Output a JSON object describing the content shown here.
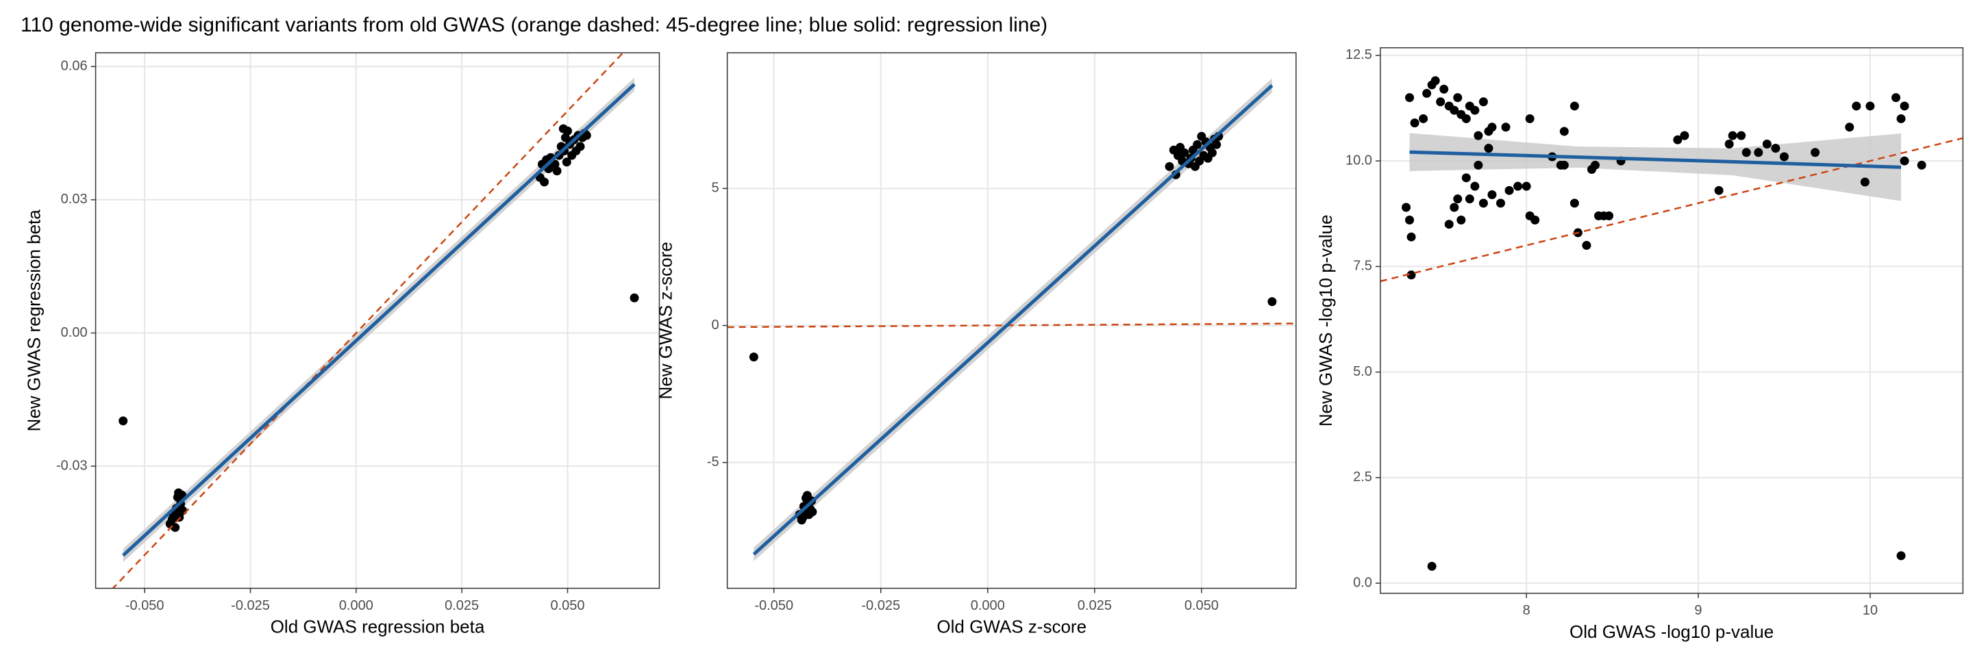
{
  "title": "110 genome-wide significant variants from old GWAS (orange dashed: 45-degree line; blue solid: regression line)",
  "chart_data": [
    {
      "type": "scatter",
      "xlabel": "Old GWAS regression beta",
      "ylabel": "New GWAS regression beta",
      "color": "#000000",
      "grid": true,
      "xlim": [
        -0.0616,
        0.0717
      ],
      "ylim": [
        -0.0575,
        0.0631
      ],
      "xticks": [
        {
          "value": -0.05,
          "label": "-0.050"
        },
        {
          "value": -0.025,
          "label": "-0.025"
        },
        {
          "value": 0,
          "label": "0.000"
        },
        {
          "value": 0.025,
          "label": "0.025"
        },
        {
          "value": 0.05,
          "label": "0.050"
        }
      ],
      "yticks": [
        {
          "value": -0.03,
          "label": "-0.03"
        },
        {
          "value": 0,
          "label": "0.00"
        },
        {
          "value": 0.03,
          "label": "0.03"
        },
        {
          "value": 0.06,
          "label": "0.06"
        }
      ],
      "x": [
        -0.044,
        -0.0435,
        -0.043,
        -0.0428,
        -0.0425,
        -0.0422,
        -0.042,
        -0.0418,
        -0.0415,
        -0.0412,
        -0.041,
        -0.0432,
        0.0435,
        0.044,
        0.0445,
        0.045,
        0.0455,
        0.046,
        0.047,
        0.0475,
        0.048,
        0.0485,
        0.049,
        0.0492,
        0.0495,
        0.0498,
        0.05,
        0.0505,
        0.051,
        0.0515,
        0.052,
        0.0525,
        0.053,
        0.0535,
        0.054,
        0.0545,
        -0.0551,
        0.0658
      ],
      "y": [
        -0.043,
        -0.042,
        -0.0405,
        -0.0438,
        -0.0395,
        -0.037,
        -0.036,
        -0.0415,
        -0.0385,
        -0.0365,
        -0.04,
        -0.0412,
        0.035,
        0.038,
        0.034,
        0.039,
        0.037,
        0.0395,
        0.038,
        0.0365,
        0.04,
        0.042,
        0.046,
        0.041,
        0.044,
        0.0385,
        0.0455,
        0.0425,
        0.04,
        0.0435,
        0.041,
        0.0445,
        0.042,
        0.044,
        0.045,
        0.0445,
        -0.0198,
        0.0079
      ],
      "lines": [
        {
          "x": [
            -0.0616,
            0.0717
          ],
          "y": [
            -0.0616,
            0.0717
          ],
          "color": "#cc4411",
          "dashed": true
        }
      ],
      "fit": {
        "x": [
          -0.0551,
          0.0658
        ],
        "y": [
          -0.0501,
          0.056
        ],
        "lower": [
          -0.0516,
          0.0545
        ],
        "upper": [
          -0.0486,
          0.0575
        ],
        "color": "#1f5fa0",
        "band_color": "#c8c8c8"
      }
    },
    {
      "type": "scatter",
      "xlabel": "Old GWAS z-score",
      "ylabel": "New GWAS z-score",
      "color": "#000000",
      "grid": true,
      "xlim": [
        -0.0609,
        0.0721
      ],
      "ylim": [
        -9.59,
        9.95
      ],
      "xticks": [
        {
          "value": -0.05,
          "label": "-0.050"
        },
        {
          "value": -0.025,
          "label": "-0.025"
        },
        {
          "value": 0,
          "label": "0.000"
        },
        {
          "value": 0.025,
          "label": "0.025"
        },
        {
          "value": 0.05,
          "label": "0.050"
        }
      ],
      "yticks": [
        -5,
        0,
        5
      ],
      "x": [
        -0.044,
        -0.0435,
        -0.043,
        -0.0428,
        -0.0425,
        -0.0422,
        -0.042,
        -0.0418,
        -0.0415,
        -0.0412,
        -0.041,
        -0.0432,
        0.0425,
        0.0435,
        0.044,
        0.0445,
        0.045,
        0.0455,
        0.046,
        0.047,
        0.0475,
        0.048,
        0.0485,
        0.049,
        0.0495,
        0.05,
        0.0505,
        0.051,
        0.0515,
        0.052,
        0.0525,
        0.053,
        0.0535,
        0.054,
        -0.0547,
        0.0665
      ],
      "y": [
        -6.9,
        -7.1,
        -6.6,
        -6.8,
        -6.3,
        -6.2,
        -6.5,
        -6.9,
        -6.7,
        -6.4,
        -6.8,
        -7.0,
        5.8,
        6.4,
        5.5,
        6.2,
        6.5,
        6.0,
        6.3,
        5.9,
        6.1,
        6.4,
        5.8,
        6.6,
        6.0,
        6.9,
        6.2,
        6.7,
        6.1,
        6.5,
        6.3,
        6.8,
        6.6,
        6.9,
        -1.15,
        0.87
      ],
      "lines": [
        {
          "x": [
            -0.0609,
            0.0721
          ],
          "y": [
            -0.0609,
            0.0721
          ],
          "color": "#cc4411",
          "dashed": true
        }
      ],
      "fit": {
        "x": [
          -0.0547,
          0.0665
        ],
        "y": [
          -8.35,
          8.76
        ],
        "lower": [
          -8.6,
          8.5
        ],
        "upper": [
          -8.1,
          9.02
        ],
        "color": "#1f5fa0",
        "band_color": "#c8c8c8"
      }
    },
    {
      "type": "scatter",
      "xlabel": "Old GWAS -log10 p-value",
      "ylabel": "New GWAS -log10 p-value",
      "color": "#000000",
      "grid": true,
      "xlim": [
        7.15,
        10.54
      ],
      "ylim": [
        -0.24,
        12.68
      ],
      "xticks": [
        8,
        9,
        10
      ],
      "yticks": [
        {
          "value": 0,
          "label": "0.0"
        },
        2.5,
        {
          "value": 5,
          "label": "5.0"
        },
        7.5,
        {
          "value": 10,
          "label": "10.0"
        },
        12.5
      ],
      "x": [
        7.32,
        7.35,
        7.4,
        7.42,
        7.45,
        7.47,
        7.5,
        7.52,
        7.55,
        7.58,
        7.6,
        7.62,
        7.65,
        7.67,
        7.7,
        7.72,
        7.75,
        7.78,
        7.8,
        7.88,
        8.02,
        8.22,
        8.28,
        7.3,
        7.32,
        7.33,
        7.33,
        7.55,
        7.58,
        7.6,
        7.62,
        7.65,
        7.67,
        7.7,
        7.72,
        7.75,
        7.78,
        7.8,
        7.85,
        7.9,
        7.95,
        8.0,
        8.02,
        8.05,
        8.15,
        8.2,
        8.22,
        8.28,
        8.3,
        8.35,
        8.38,
        8.4,
        8.42,
        8.45,
        8.48,
        8.55,
        8.88,
        8.92,
        9.12,
        9.18,
        9.2,
        9.25,
        9.28,
        9.35,
        9.4,
        9.45,
        9.5,
        9.68,
        9.88,
        9.92,
        10.0,
        10.15,
        10.18,
        10.2,
        10.2,
        10.3,
        9.97,
        7.45,
        10.18
      ],
      "y": [
        11.5,
        10.9,
        11.0,
        11.6,
        11.8,
        11.9,
        11.4,
        11.7,
        11.3,
        11.2,
        11.5,
        11.1,
        11.0,
        11.3,
        11.2,
        10.6,
        11.4,
        10.7,
        10.8,
        10.8,
        11.0,
        10.7,
        11.3,
        8.9,
        8.6,
        8.2,
        7.3,
        8.5,
        8.9,
        9.1,
        8.6,
        9.6,
        9.1,
        9.4,
        9.9,
        9.0,
        10.3,
        9.2,
        9.0,
        9.3,
        9.4,
        9.4,
        8.7,
        8.6,
        10.1,
        9.9,
        9.9,
        9.0,
        8.3,
        8.0,
        9.8,
        9.9,
        8.7,
        8.7,
        8.7,
        10.0,
        10.5,
        10.6,
        9.3,
        10.4,
        10.6,
        10.6,
        10.2,
        10.2,
        10.4,
        10.3,
        10.1,
        10.2,
        10.8,
        11.3,
        11.3,
        11.5,
        11.0,
        11.3,
        10.0,
        9.9,
        9.5,
        0.4,
        0.65
      ],
      "lines": [
        {
          "x": [
            7.15,
            10.54
          ],
          "y": [
            7.15,
            10.54
          ],
          "color": "#cc4411",
          "dashed": true
        }
      ],
      "fit": {
        "x": [
          7.32,
          8.3,
          9.2,
          10.18
        ],
        "y": [
          10.21,
          10.09,
          9.98,
          9.85
        ],
        "lower": [
          9.76,
          9.84,
          9.66,
          9.05
        ],
        "upper": [
          10.66,
          10.34,
          10.3,
          10.65
        ],
        "color": "#1f5fa0",
        "band_color": "#c8c8c8"
      }
    }
  ]
}
